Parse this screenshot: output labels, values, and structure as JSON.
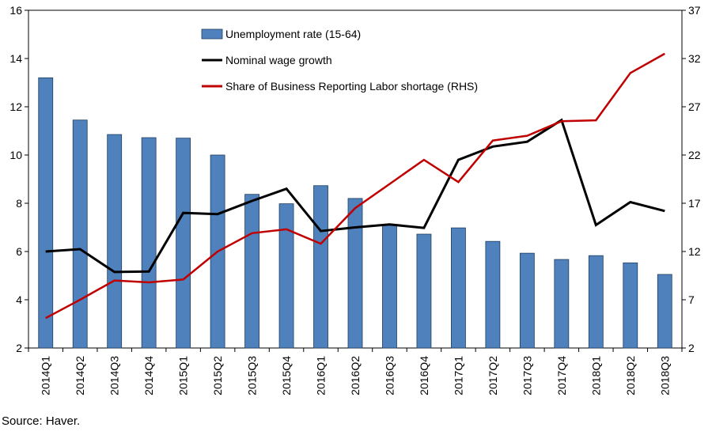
{
  "chart_data": {
    "type": "bar",
    "categories": [
      "2014Q1",
      "2014Q2",
      "2014Q3",
      "2014Q4",
      "2015Q1",
      "2015Q2",
      "2015Q3",
      "2015Q4",
      "2016Q1",
      "2016Q2",
      "2016Q3",
      "2016Q4",
      "2017Q1",
      "2017Q2",
      "2017Q3",
      "2017Q4",
      "2018Q1",
      "2018Q2",
      "2018Q3"
    ],
    "ylim": [
      2,
      16
    ],
    "yticks": [
      2,
      4,
      6,
      8,
      10,
      12,
      14,
      16
    ],
    "y2lim": [
      2,
      37
    ],
    "y2ticks": [
      2,
      7,
      12,
      17,
      22,
      27,
      32,
      37
    ],
    "grid": false,
    "legend_position": "top-center",
    "series": [
      {
        "name": "Unemployment rate (15-64)",
        "type": "bar",
        "axis": "left",
        "color": "#4F81BD",
        "values": [
          13.2,
          11.45,
          10.85,
          10.72,
          10.7,
          10.0,
          8.37,
          7.98,
          8.73,
          8.2,
          7.1,
          6.72,
          6.98,
          6.42,
          5.93,
          5.67,
          5.83,
          5.53,
          5.05
        ]
      },
      {
        "name": "Nominal wage growth",
        "type": "line",
        "axis": "left",
        "color": "#000000",
        "values": [
          6.0,
          6.1,
          5.15,
          5.17,
          7.6,
          7.55,
          8.1,
          8.6,
          6.85,
          7.0,
          7.12,
          6.98,
          9.8,
          10.35,
          10.55,
          11.45,
          7.1,
          8.05,
          7.68
        ]
      },
      {
        "name": "Share of Business Reporting Labor shortage (RHS)",
        "type": "line",
        "axis": "right",
        "color": "#C00000",
        "values": [
          5.1,
          7.0,
          9.0,
          8.8,
          9.1,
          12.0,
          13.9,
          14.3,
          12.8,
          16.5,
          19.0,
          21.5,
          19.2,
          23.5,
          24.0,
          25.5,
          25.6,
          30.5,
          32.5
        ]
      }
    ]
  },
  "source": "Source:  Haver."
}
